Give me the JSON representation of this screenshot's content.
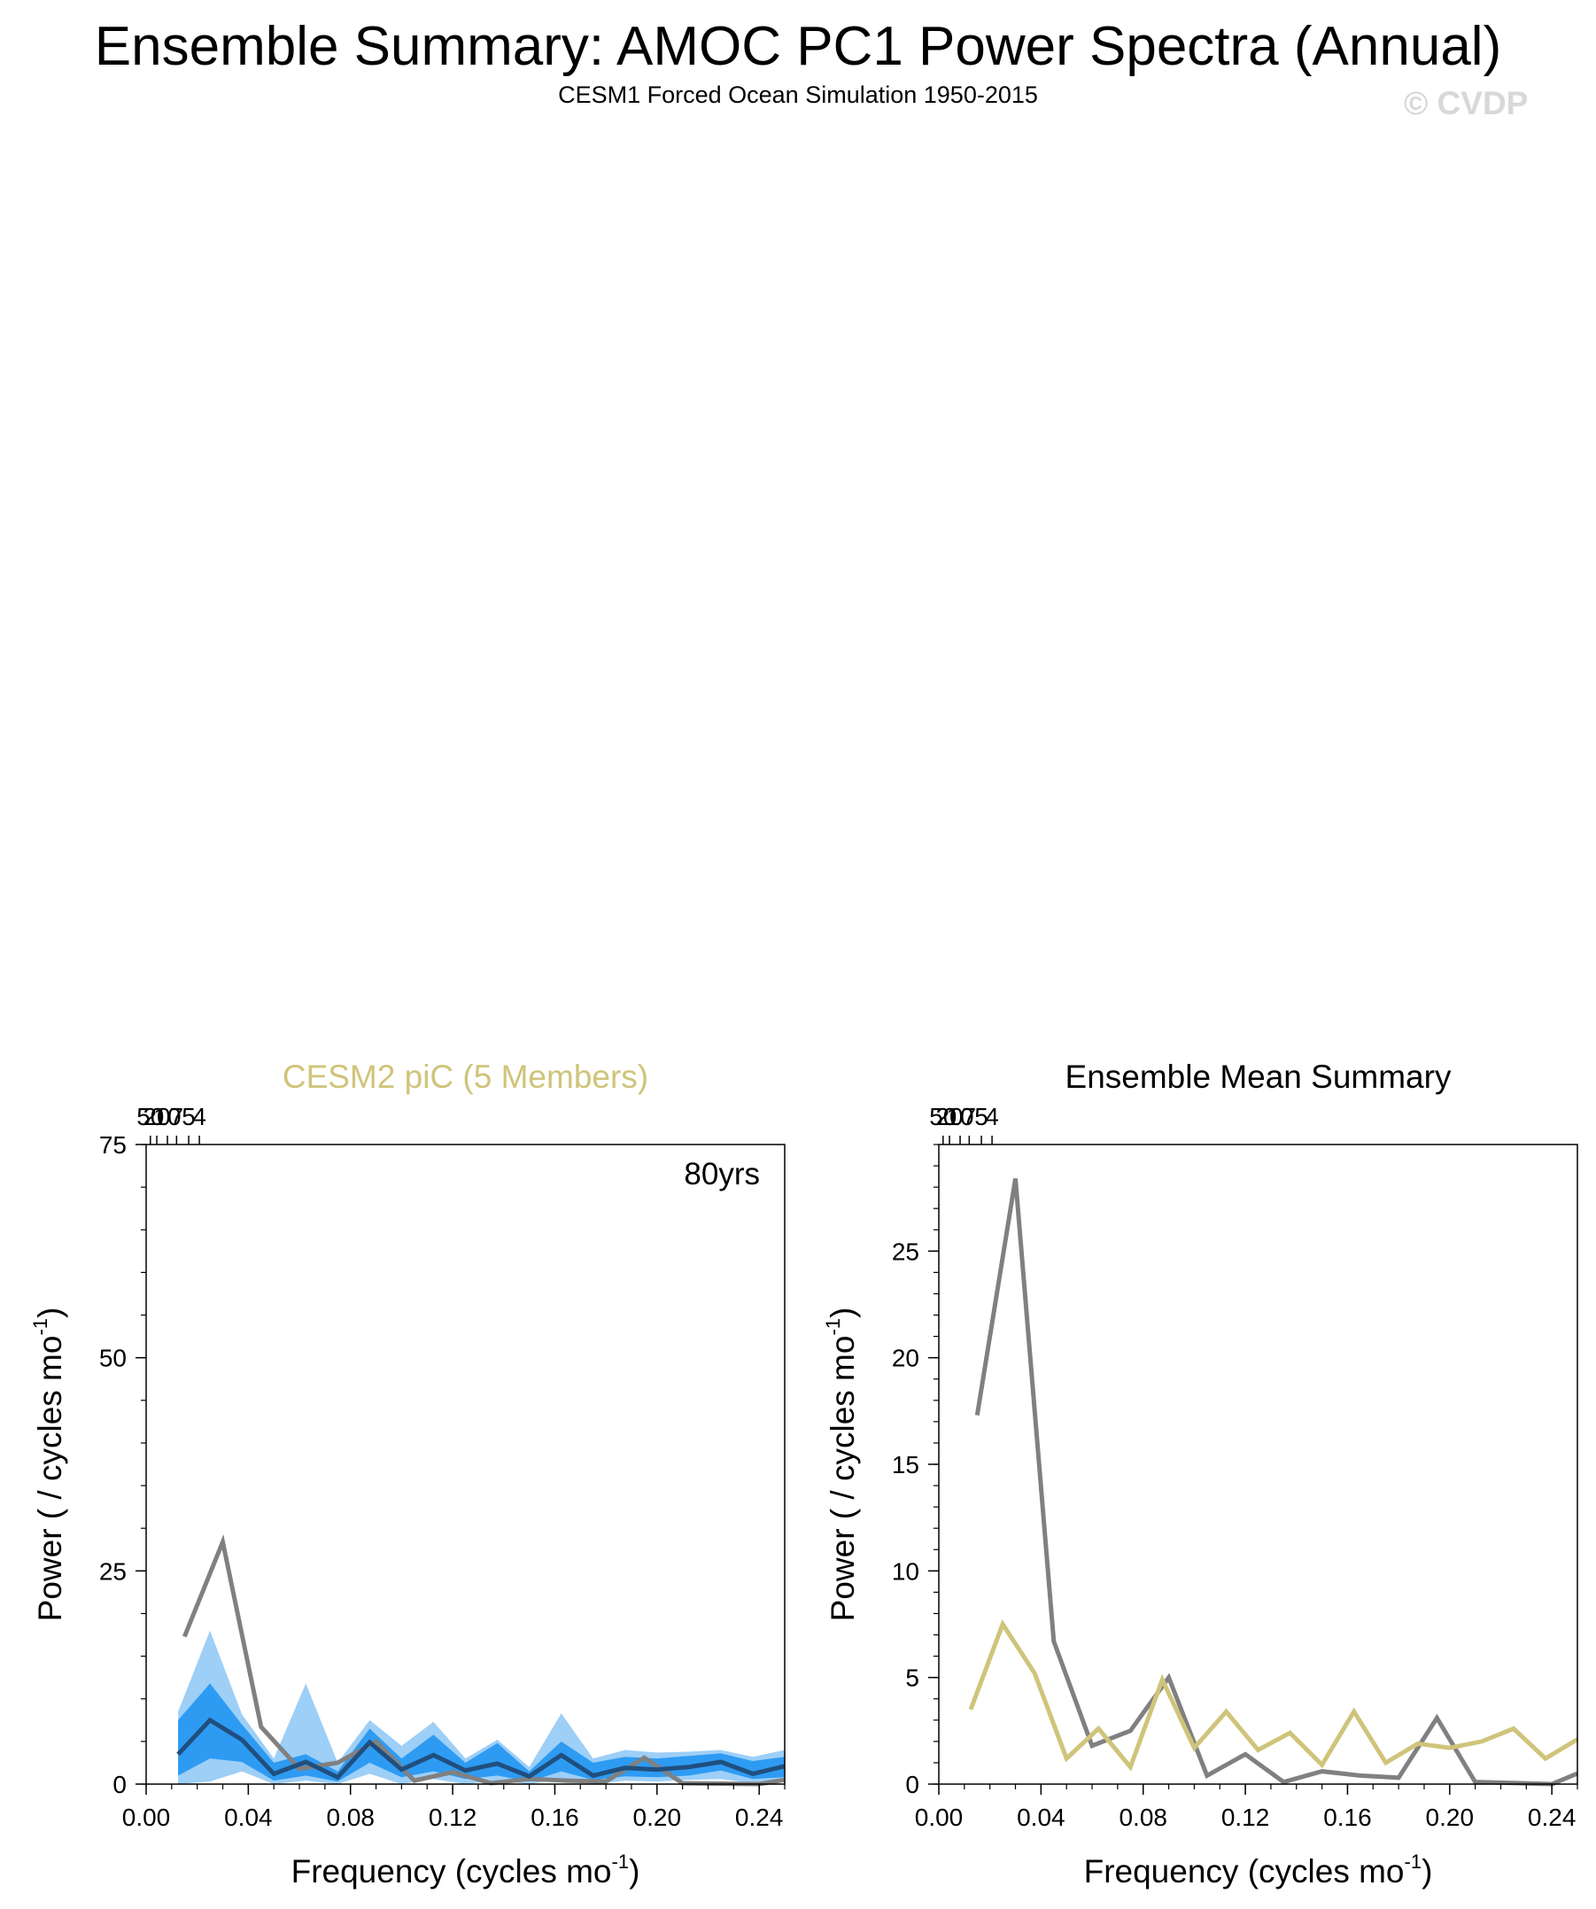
{
  "page": {
    "title": "Ensemble Summary: AMOC PC1 Power Spectra (Annual)",
    "subtitle": "CESM1 Forced Ocean Simulation 1950-2015",
    "watermark": "© CVDP"
  },
  "colors": {
    "observations": "#808080",
    "ensemble_mean_line": "#1f4f7f",
    "inner_band": "#2e9bf2",
    "outer_band": "#9dcff7",
    "ensemble_mean_label": "#cfc47a",
    "axis": "#000000"
  },
  "chart_data": [
    {
      "type": "line",
      "title": "CESM2 piC (5 Members)",
      "annotation": "80yrs",
      "xlabel": "Frequency (cycles mo",
      "xlabel_sup": "-1",
      "xlabel_end": ")",
      "ylabel": "Power ( / cycles mo",
      "ylabel_sup": "-1",
      "ylabel_end": ")",
      "xlim": [
        0,
        0.25
      ],
      "ylim": [
        0,
        75
      ],
      "xticks": [
        0.0,
        0.04,
        0.08,
        0.12,
        0.16,
        0.2,
        0.24
      ],
      "xtick_labels": [
        "0.00",
        "0.04",
        "0.08",
        "0.12",
        "0.16",
        "0.20",
        "0.24"
      ],
      "yticks": [
        0,
        25,
        50,
        75
      ],
      "ytick_labels": [
        "0",
        "25",
        "50",
        "75"
      ],
      "period_ticks": [
        50,
        20,
        10,
        7,
        5,
        4
      ],
      "period_tick_labels": [
        "50",
        "20",
        "10",
        "7",
        "5",
        "4"
      ],
      "x": [
        0.0125,
        0.025,
        0.0375,
        0.05,
        0.0625,
        0.075,
        0.0875,
        0.1,
        0.1125,
        0.125,
        0.1375,
        0.15,
        0.1625,
        0.175,
        0.1875,
        0.2,
        0.2125,
        0.225,
        0.2375,
        0.25
      ],
      "series": [
        {
          "name": "observations",
          "x": [
            0.015,
            0.03,
            0.045,
            0.06,
            0.075,
            0.09,
            0.105,
            0.12,
            0.135,
            0.15,
            0.165,
            0.18,
            0.195,
            0.21,
            0.225,
            0.24,
            0.25
          ],
          "values": [
            17.3,
            28.4,
            6.7,
            1.8,
            2.5,
            5.0,
            0.4,
            1.4,
            0.1,
            0.6,
            0.4,
            0.3,
            3.1,
            0.1,
            0.05,
            0.0,
            0.5
          ]
        },
        {
          "name": "ensemble-mean",
          "values": [
            3.5,
            7.5,
            5.2,
            1.2,
            2.6,
            0.8,
            4.9,
            1.7,
            3.4,
            1.6,
            2.4,
            0.9,
            3.4,
            1.0,
            1.9,
            1.7,
            2.0,
            2.6,
            1.2,
            2.1
          ]
        },
        {
          "name": "10-90-upper",
          "values": [
            7.5,
            11.8,
            7.0,
            2.5,
            3.5,
            1.5,
            6.5,
            3.0,
            5.8,
            2.5,
            4.8,
            1.5,
            5.0,
            2.5,
            3.2,
            3.0,
            3.3,
            3.6,
            2.7,
            3.2
          ]
        },
        {
          "name": "10-90-lower",
          "values": [
            1.0,
            3.0,
            2.6,
            0.4,
            1.0,
            0.3,
            2.5,
            0.8,
            1.5,
            0.6,
            1.0,
            0.3,
            1.5,
            0.5,
            0.9,
            0.8,
            1.0,
            1.6,
            0.6,
            0.8
          ]
        },
        {
          "name": "min-max-upper",
          "values": [
            8.5,
            18.0,
            8.2,
            3.0,
            11.8,
            2.5,
            7.5,
            4.5,
            7.3,
            3.0,
            5.2,
            2.0,
            8.3,
            3.0,
            4.0,
            3.7,
            3.8,
            4.0,
            3.2,
            4.0
          ]
        },
        {
          "name": "min-max-lower",
          "values": [
            0.0,
            0.3,
            1.5,
            0.0,
            0.4,
            0.0,
            1.2,
            0.0,
            0.6,
            0.0,
            0.4,
            0.0,
            0.6,
            0.0,
            0.4,
            0.3,
            0.5,
            0.6,
            0.1,
            0.3
          ]
        }
      ]
    },
    {
      "type": "line",
      "title": "Ensemble Mean Summary",
      "xlabel": "Frequency (cycles mo",
      "xlabel_sup": "-1",
      "xlabel_end": ")",
      "ylabel": "Power ( / cycles mo",
      "ylabel_sup": "-1",
      "ylabel_end": ")",
      "xlim": [
        0,
        0.25
      ],
      "ylim": [
        0,
        30
      ],
      "xticks": [
        0.0,
        0.04,
        0.08,
        0.12,
        0.16,
        0.2,
        0.24
      ],
      "xtick_labels": [
        "0.00",
        "0.04",
        "0.08",
        "0.12",
        "0.16",
        "0.20",
        "0.24"
      ],
      "yticks": [
        0,
        5,
        10,
        15,
        20,
        25
      ],
      "ytick_labels": [
        "0",
        "5",
        "10",
        "15",
        "20",
        "25"
      ],
      "period_ticks": [
        50,
        20,
        10,
        7,
        5,
        4
      ],
      "period_tick_labels": [
        "50",
        "20",
        "10",
        "7",
        "5",
        "4"
      ],
      "series": [
        {
          "name": "observations",
          "x": [
            0.015,
            0.03,
            0.045,
            0.06,
            0.075,
            0.09,
            0.105,
            0.12,
            0.135,
            0.15,
            0.165,
            0.18,
            0.195,
            0.21,
            0.225,
            0.24,
            0.25
          ],
          "values": [
            17.3,
            28.4,
            6.7,
            1.8,
            2.5,
            5.0,
            0.4,
            1.4,
            0.1,
            0.6,
            0.4,
            0.3,
            3.1,
            0.1,
            0.05,
            0.0,
            0.5
          ]
        },
        {
          "name": "ensemble-mean",
          "x": [
            0.0125,
            0.025,
            0.0375,
            0.05,
            0.0625,
            0.075,
            0.0875,
            0.1,
            0.1125,
            0.125,
            0.1375,
            0.15,
            0.1625,
            0.175,
            0.1875,
            0.2,
            0.2125,
            0.225,
            0.2375,
            0.25
          ],
          "values": [
            3.5,
            7.5,
            5.2,
            1.2,
            2.6,
            0.8,
            4.9,
            1.7,
            3.4,
            1.6,
            2.4,
            0.9,
            3.4,
            1.0,
            1.9,
            1.7,
            2.0,
            2.6,
            1.2,
            2.1
          ]
        }
      ]
    }
  ]
}
